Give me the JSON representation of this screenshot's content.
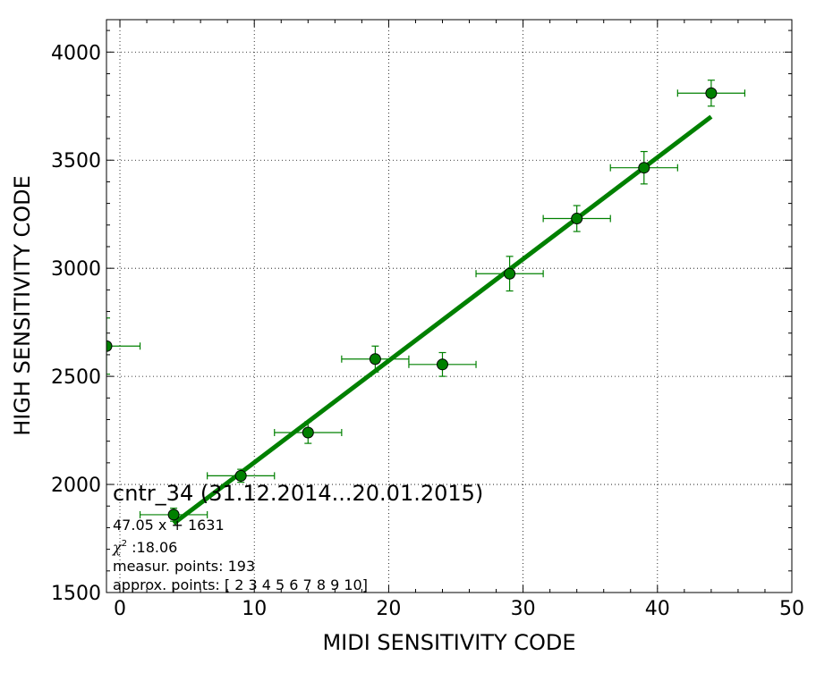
{
  "chart_data": {
    "type": "scatter",
    "title": "",
    "xlabel": "MIDI SENSITIVITY CODE",
    "ylabel": "HIGH SENSITIVITY CODE",
    "xlim": [
      -1,
      50
    ],
    "ylim": [
      1500,
      4150
    ],
    "xticks": [
      0,
      10,
      20,
      30,
      40,
      50
    ],
    "yticks": [
      1500,
      2000,
      2500,
      3000,
      3500,
      4000
    ],
    "grid": true,
    "colors": {
      "points": "#008000",
      "fit_line": "#008000",
      "errorbars": "#008000"
    },
    "points": [
      {
        "x": -1,
        "y": 2640,
        "xerr": 2.5,
        "yerr": 130
      },
      {
        "x": 4,
        "y": 1860,
        "xerr": 2.5,
        "yerr": 30
      },
      {
        "x": 9,
        "y": 2040,
        "xerr": 2.5,
        "yerr": 30
      },
      {
        "x": 14,
        "y": 2240,
        "xerr": 2.5,
        "yerr": 50
      },
      {
        "x": 19,
        "y": 2580,
        "xerr": 2.5,
        "yerr": 60
      },
      {
        "x": 24,
        "y": 2555,
        "xerr": 2.5,
        "yerr": 55
      },
      {
        "x": 29,
        "y": 2975,
        "xerr": 2.5,
        "yerr": 80
      },
      {
        "x": 34,
        "y": 3230,
        "xerr": 2.5,
        "yerr": 60
      },
      {
        "x": 39,
        "y": 3465,
        "xerr": 2.5,
        "yerr": 75
      },
      {
        "x": 44,
        "y": 3810,
        "xerr": 2.5,
        "yerr": 60
      }
    ],
    "fit": {
      "slope": 47.05,
      "intercept": 1631,
      "x_range": [
        4,
        44
      ]
    },
    "annotations": {
      "name": "cntr_34 (31.12.2014...20.01.2015)",
      "equation": "47.05 x + 1631",
      "chi2_symbol": "χ",
      "chi2_sup": "2",
      "chi2_value": " :18.06",
      "measured": "measur. points: 193",
      "approx": "approx. points: [ 2  3  4  5  6  7  8  9 10]"
    }
  }
}
